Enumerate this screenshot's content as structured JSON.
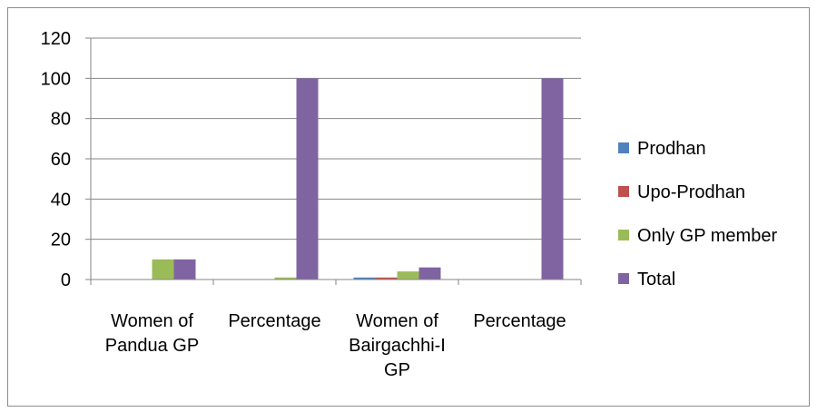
{
  "chart_data": {
    "type": "bar",
    "categories": [
      [
        "Women of",
        "Pandua GP"
      ],
      [
        "Percentage"
      ],
      [
        "Women of",
        "Bairgachhi-I",
        "GP"
      ],
      [
        "Percentage"
      ]
    ],
    "series": [
      {
        "name": "Prodhan",
        "color": "#4f81bd",
        "values": [
          0,
          0,
          1,
          0
        ]
      },
      {
        "name": "Upo-Prodhan",
        "color": "#c0504d",
        "values": [
          0,
          0,
          1,
          0
        ]
      },
      {
        "name": "Only GP member",
        "color": "#9bbb59",
        "values": [
          10,
          1,
          4,
          0
        ]
      },
      {
        "name": "Total",
        "color": "#8064a2",
        "values": [
          10,
          100,
          6,
          100
        ]
      }
    ],
    "ylim": [
      0,
      120
    ],
    "yticks": [
      0,
      20,
      40,
      60,
      80,
      100,
      120
    ],
    "grid": true,
    "legend": "right",
    "title": "",
    "xlabel": "",
    "ylabel": ""
  }
}
